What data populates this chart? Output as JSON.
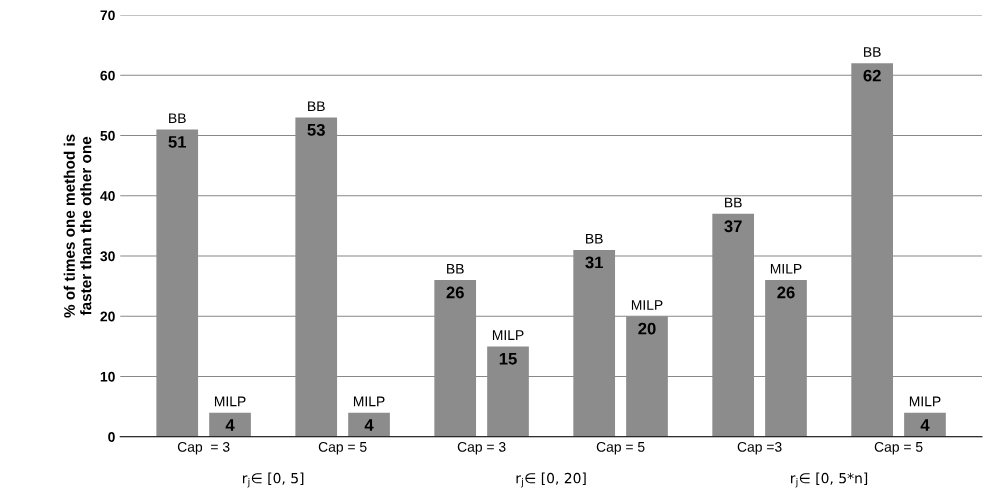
{
  "chart_data": {
    "type": "bar",
    "ylabel": "% of times one method is\nfaster than the other one",
    "categories": [
      "Cap  = 3",
      "Cap = 5",
      "Cap = 3",
      "Cap = 5",
      "Cap =3",
      "Cap = 5"
    ],
    "series": [
      {
        "name": "BB",
        "color": "#8c8c8c",
        "values": [
          51,
          53,
          26,
          31,
          37,
          62
        ]
      },
      {
        "name": "MILP",
        "color": "#8c8c8c",
        "values": [
          4,
          4,
          15,
          20,
          26,
          4
        ]
      }
    ],
    "annotations": [
      "r$_{j}$∈ [0, 5]",
      "r$_{j}$∈ [0, 20]",
      "r$_{j}$∈ [0, 5*n]"
    ],
    "ylim": [
      0,
      70
    ],
    "yticks": [
      0,
      10,
      20,
      30,
      40,
      50,
      60,
      70
    ],
    "grid": "y",
    "data_labels": true,
    "legend": false
  }
}
